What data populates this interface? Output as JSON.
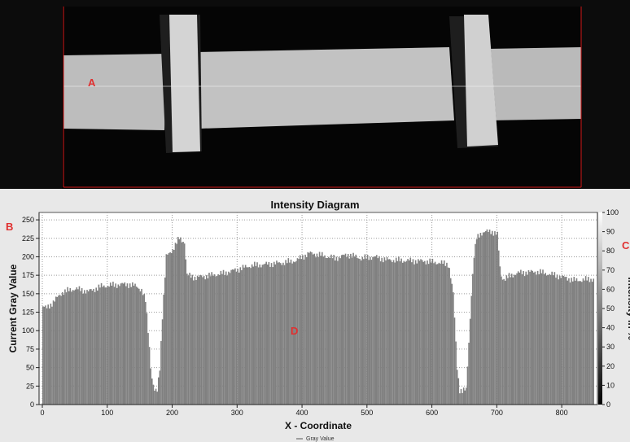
{
  "labels": {
    "a": "A",
    "b": "B",
    "c": "C",
    "d": "D"
  },
  "colors": {
    "label": "#e03030",
    "bars": "#808080",
    "plot_bg": "#ffffff",
    "panel_bg": "#101010"
  },
  "chart_data": {
    "type": "area",
    "title": "Intensity Diagram",
    "xlabel": "X - Coordinate",
    "ylabel": "Current Gray Value",
    "y2label": "Intensity in %",
    "legend": [
      "Gray Value"
    ],
    "legend_position": "bottom-center",
    "grid": true,
    "xlim": [
      -5,
      855
    ],
    "ylim": [
      0,
      260
    ],
    "y2lim": [
      0,
      100
    ],
    "x_ticks": [
      0,
      100,
      200,
      300,
      400,
      500,
      600,
      700,
      800
    ],
    "y_ticks": [
      0,
      25,
      50,
      75,
      100,
      125,
      150,
      175,
      200,
      225,
      250
    ],
    "y2_ticks": [
      0,
      10,
      20,
      30,
      40,
      50,
      60,
      70,
      80,
      90,
      100
    ],
    "series": [
      {
        "name": "Gray Value",
        "x": [
          0,
          5,
          15,
          30,
          50,
          70,
          90,
          110,
          130,
          145,
          152,
          158,
          163,
          167,
          172,
          176,
          180,
          184,
          190,
          200,
          210,
          218,
          222,
          235,
          260,
          280,
          300,
          320,
          345,
          370,
          390,
          410,
          430,
          450,
          470,
          490,
          510,
          530,
          560,
          590,
          610,
          625,
          632,
          638,
          642,
          646,
          652,
          660,
          664,
          668,
          674,
          690,
          700,
          705,
          710,
          730,
          760,
          790,
          820,
          848
        ],
        "values": [
          133,
          130,
          138,
          152,
          157,
          153,
          160,
          162,
          163,
          160,
          155,
          140,
          90,
          40,
          18,
          18,
          50,
          120,
          200,
          210,
          225,
          220,
          175,
          172,
          175,
          178,
          183,
          188,
          190,
          192,
          195,
          205,
          202,
          198,
          203,
          198,
          200,
          196,
          195,
          194,
          192,
          190,
          150,
          50,
          20,
          18,
          20,
          150,
          200,
          225,
          232,
          235,
          230,
          175,
          170,
          178,
          180,
          175,
          168,
          170
        ]
      }
    ]
  }
}
